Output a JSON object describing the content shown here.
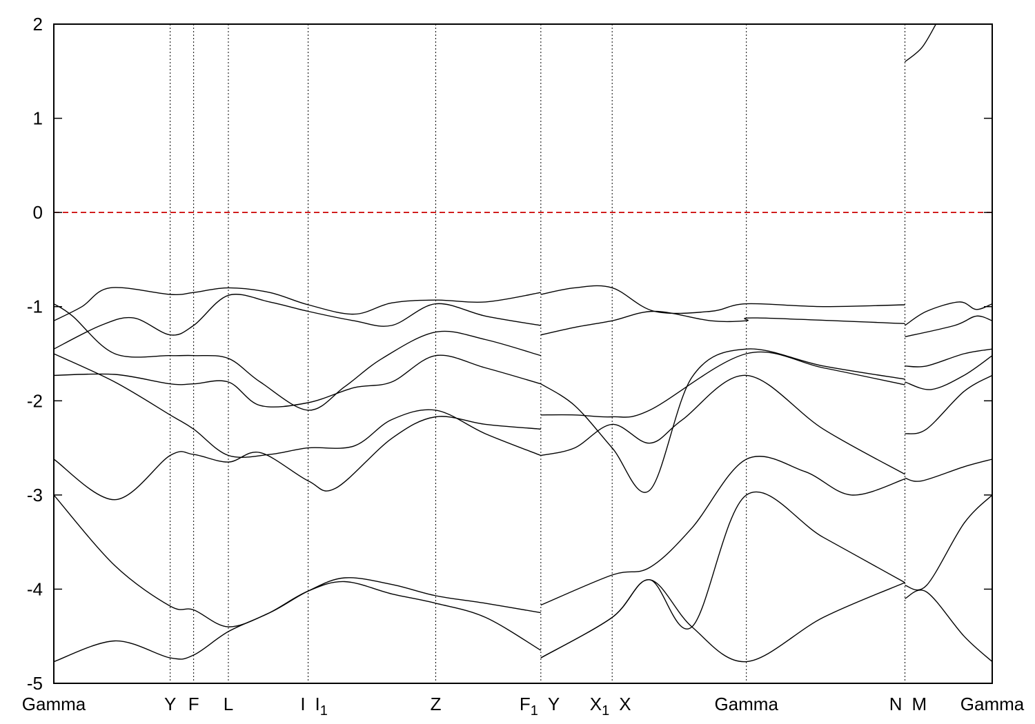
{
  "chart_data": {
    "type": "line",
    "title": "",
    "xlabel": "",
    "ylabel": "",
    "ylim": [
      -5,
      2
    ],
    "yticks": [
      -5,
      -4,
      -3,
      -2,
      -1,
      0,
      1,
      2
    ],
    "ytick_labels": [
      "-5",
      "-4",
      "-3",
      "-2",
      "-1",
      "0",
      "1",
      "2"
    ],
    "xlim": [
      0,
      10.0
    ],
    "grid": false,
    "fermi_level": {
      "y": 0,
      "color": "#cc0000",
      "style": "dashed"
    },
    "kpoints": [
      {
        "x": 0.0,
        "label": "Gamma",
        "sub": ""
      },
      {
        "x": 1.24,
        "label": "Y",
        "sub": ""
      },
      {
        "x": 1.49,
        "label": "F",
        "sub": ""
      },
      {
        "x": 1.86,
        "label": "L",
        "sub": ""
      },
      {
        "x": 2.71,
        "label": "I",
        "sub": ""
      },
      {
        "x": 2.71,
        "label": "I",
        "sub": "1"
      },
      {
        "x": 4.07,
        "label": "Z",
        "sub": ""
      },
      {
        "x": 5.19,
        "label": "F",
        "sub": "1"
      },
      {
        "x": 5.19,
        "label": "Y",
        "sub": ""
      },
      {
        "x": 5.95,
        "label": "X",
        "sub": "1"
      },
      {
        "x": 5.95,
        "label": "X",
        "sub": ""
      },
      {
        "x": 7.38,
        "label": "Gamma",
        "sub": ""
      },
      {
        "x": 9.07,
        "label": "N",
        "sub": ""
      },
      {
        "x": 9.07,
        "label": "M",
        "sub": ""
      },
      {
        "x": 10.0,
        "label": "Gamma",
        "sub": ""
      }
    ],
    "series": [
      {
        "x": [
          0,
          0.2,
          0.65,
          1.24,
          1.49,
          1.86,
          2.2,
          2.71,
          3.1,
          3.5,
          4.07,
          4.6,
          5.19
        ],
        "values": [
          -0.97,
          -1.1,
          -1.5,
          -1.52,
          -1.52,
          -1.55,
          -1.8,
          -2.1,
          -1.85,
          -1.55,
          -1.27,
          -1.35,
          -1.52
        ]
      },
      {
        "x": [
          0,
          0.5,
          0.85,
          1.24,
          1.49,
          1.86,
          2.3,
          2.71,
          3.2,
          3.6,
          4.07,
          4.6,
          5.19
        ],
        "values": [
          -1.45,
          -1.2,
          -1.12,
          -1.3,
          -1.2,
          -0.88,
          -0.95,
          -1.05,
          -1.15,
          -1.2,
          -0.97,
          -1.1,
          -1.2
        ]
      },
      {
        "x": [
          0,
          0.3,
          0.6,
          1.24,
          1.49,
          1.86,
          2.3,
          2.71,
          3.2,
          3.6,
          4.07,
          4.6,
          5.19
        ],
        "values": [
          -1.15,
          -1.0,
          -0.8,
          -0.87,
          -0.85,
          -0.8,
          -0.85,
          -0.98,
          -1.08,
          -0.96,
          -0.93,
          -0.95,
          -0.85
        ]
      },
      {
        "x": [
          0,
          0.65,
          1.24,
          1.49,
          1.86,
          2.2,
          2.71,
          3.2,
          3.6,
          4.07,
          4.6,
          5.19
        ],
        "values": [
          -1.73,
          -1.72,
          -1.82,
          -1.82,
          -1.8,
          -2.05,
          -2.02,
          -1.86,
          -1.8,
          -1.52,
          -1.65,
          -1.82
        ]
      },
      {
        "x": [
          0,
          0.65,
          1.24,
          1.49,
          1.86,
          2.3,
          2.71,
          3.2,
          3.6,
          4.07,
          4.6,
          5.19
        ],
        "values": [
          -1.5,
          -1.8,
          -2.15,
          -2.3,
          -2.58,
          -2.57,
          -2.5,
          -2.48,
          -2.2,
          -2.1,
          -2.35,
          -2.58
        ]
      },
      {
        "x": [
          0,
          0.65,
          1.24,
          1.49,
          1.86,
          2.2,
          2.71,
          3.0,
          3.6,
          4.07,
          4.6,
          5.19
        ],
        "values": [
          -2.62,
          -3.05,
          -2.58,
          -2.57,
          -2.65,
          -2.55,
          -2.85,
          -2.93,
          -2.4,
          -2.17,
          -2.25,
          -2.3
        ]
      },
      {
        "x": [
          0,
          0.65,
          1.24,
          1.49,
          1.86,
          2.3,
          2.71,
          3.1,
          3.6,
          4.07,
          4.6,
          5.19
        ],
        "values": [
          -3.0,
          -3.75,
          -4.18,
          -4.22,
          -4.4,
          -4.25,
          -4.02,
          -3.88,
          -3.95,
          -4.07,
          -4.15,
          -4.25
        ]
      },
      {
        "x": [
          0,
          0.65,
          1.24,
          1.49,
          1.86,
          2.3,
          2.71,
          3.1,
          3.6,
          4.07,
          4.6,
          5.19
        ],
        "values": [
          -4.77,
          -4.55,
          -4.73,
          -4.7,
          -4.45,
          -4.25,
          -4.02,
          -3.92,
          -4.05,
          -4.15,
          -4.3,
          -4.65
        ]
      },
      {
        "x": [
          5.19,
          5.55,
          5.95,
          6.4,
          7.0,
          7.38,
          8.2,
          9.07
        ],
        "values": [
          -0.87,
          -0.8,
          -0.8,
          -1.05,
          -1.05,
          -0.97,
          -1.0,
          -0.98
        ]
      },
      {
        "x": [
          5.19,
          5.55,
          5.95,
          6.4,
          7.0,
          7.38,
          7.5,
          9.07
        ],
        "values": [
          -1.3,
          -1.22,
          -1.15,
          -1.05,
          -1.15,
          -1.15,
          -1.12,
          -1.18
        ]
      },
      {
        "x": [
          5.19,
          5.55,
          5.95,
          6.35,
          6.8,
          7.38,
          8.2,
          9.07
        ],
        "values": [
          -1.82,
          -2.05,
          -2.5,
          -2.95,
          -1.75,
          -1.45,
          -1.63,
          -1.77
        ]
      },
      {
        "x": [
          5.19,
          5.55,
          5.95,
          6.35,
          7.38,
          8.2,
          9.07
        ],
        "values": [
          -2.15,
          -2.15,
          -2.17,
          -2.1,
          -1.5,
          -1.65,
          -1.83
        ]
      },
      {
        "x": [
          5.19,
          5.55,
          5.95,
          6.35,
          6.7,
          7.38,
          8.2,
          9.07
        ],
        "values": [
          -2.58,
          -2.5,
          -2.25,
          -2.45,
          -2.2,
          -1.73,
          -2.3,
          -2.78
        ]
      },
      {
        "x": [
          5.19,
          5.95,
          6.35,
          6.8,
          7.38,
          8.0,
          8.5,
          9.07
        ],
        "values": [
          -4.17,
          -3.85,
          -3.77,
          -3.35,
          -2.62,
          -2.75,
          -3.0,
          -2.83
        ]
      },
      {
        "x": [
          5.19,
          5.95,
          6.35,
          6.8,
          7.38,
          8.2,
          9.07
        ],
        "values": [
          -4.73,
          -4.3,
          -3.9,
          -4.4,
          -3.0,
          -3.45,
          -3.93
        ]
      },
      {
        "x": [
          5.19,
          5.95,
          6.35,
          6.8,
          7.38,
          8.2,
          9.07
        ],
        "values": [
          -4.73,
          -4.3,
          -3.9,
          -4.4,
          -4.77,
          -4.3,
          -3.93
        ]
      },
      {
        "x": [
          9.07,
          9.3,
          9.65,
          9.83,
          10.0
        ],
        "values": [
          -1.2,
          -1.05,
          -0.95,
          -1.03,
          -0.97
        ]
      },
      {
        "x": [
          9.07,
          9.6,
          9.83,
          10.0
        ],
        "values": [
          -1.32,
          -1.2,
          -1.1,
          -1.15
        ]
      },
      {
        "x": [
          9.07,
          9.3,
          9.7,
          10.0
        ],
        "values": [
          -1.63,
          -1.63,
          -1.5,
          -1.45
        ]
      },
      {
        "x": [
          9.07,
          9.35,
          9.7,
          10.0
        ],
        "values": [
          -1.8,
          -1.88,
          -1.73,
          -1.52
        ]
      },
      {
        "x": [
          9.07,
          9.3,
          9.7,
          10.0
        ],
        "values": [
          -2.35,
          -2.3,
          -1.9,
          -1.73
        ]
      },
      {
        "x": [
          9.07,
          9.25,
          9.7,
          10.0
        ],
        "values": [
          -2.82,
          -2.85,
          -2.7,
          -2.62
        ]
      },
      {
        "x": [
          9.07,
          9.3,
          9.7,
          10.0
        ],
        "values": [
          -3.96,
          -3.96,
          -3.3,
          -3.0
        ]
      },
      {
        "x": [
          9.07,
          9.3,
          9.7,
          10.0
        ],
        "values": [
          -4.1,
          -4.03,
          -4.5,
          -4.77
        ]
      },
      {
        "x": [
          9.07,
          9.25,
          9.4
        ],
        "values": [
          1.6,
          1.75,
          2.0
        ]
      }
    ]
  }
}
